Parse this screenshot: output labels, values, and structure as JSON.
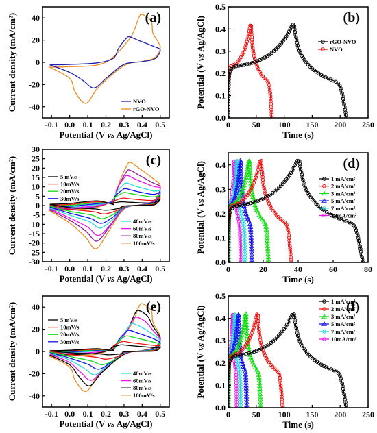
{
  "figure": {
    "panel_labels": [
      "(a)",
      "(b)",
      "(c)",
      "(d)",
      "(e)",
      "(f)"
    ]
  },
  "colors": {
    "NVO": "#1f1fb0",
    "rGO-NVO": "#f08a1e",
    "black": "#000000",
    "red": "#ee1111",
    "green": "#11dd11",
    "blue": "#1111ee",
    "cyan": "#22dddd",
    "magenta": "#ee11ee",
    "purple": "#8a1aa0"
  },
  "chart_data": [
    {
      "panel": "(a)",
      "type": "line",
      "xlabel": "Potential (V vs Ag/AgCl)",
      "ylabel": "Current density (mA/cm²)",
      "xlim": [
        -0.15,
        0.55
      ],
      "ylim": [
        -50,
        50
      ],
      "xticks": [
        -0.1,
        0.0,
        0.1,
        0.2,
        0.3,
        0.4,
        0.5
      ],
      "yticks": [
        -40,
        -20,
        0,
        20,
        40
      ],
      "xtick_labels": [
        "-0.1",
        "0.0",
        "0.1",
        "0.2",
        "0.3",
        "0.4",
        "0.5"
      ],
      "ytick_labels": [
        "-40",
        "-20",
        "0",
        "20",
        "40"
      ],
      "legend_position": "bottom-right",
      "series": [
        {
          "name": "NVO",
          "color": "#1f1fb0",
          "cv": {
            "lower_min": -3.5,
            "lower_max": 6.5,
            "ox_peak": [
              0.33,
              23
            ],
            "red_peak": [
              0.135,
              -23
            ]
          }
        },
        {
          "name": "rGO-NVO",
          "color": "#f08a1e",
          "cv": {
            "lower_min": -5.5,
            "lower_max": 8.5,
            "ox_peak": [
              0.4,
              43
            ],
            "red_peak": [
              0.09,
              -37
            ]
          }
        }
      ]
    },
    {
      "panel": "(b)",
      "type": "line",
      "xlabel": "Time (s)",
      "ylabel": "Potential (V vs Ag/AgCl)",
      "xlim": [
        0,
        250
      ],
      "ylim": [
        0,
        0.5
      ],
      "xticks": [
        0,
        50,
        100,
        150,
        200,
        250
      ],
      "yticks": [
        0.0,
        0.1,
        0.2,
        0.3,
        0.4,
        0.5
      ],
      "xtick_labels": [
        "0",
        "50",
        "100",
        "150",
        "200",
        "250"
      ],
      "ytick_labels": [
        "0.0",
        "0.1",
        "0.2",
        "0.3",
        "0.4",
        "0.5"
      ],
      "legend_position": "right",
      "series": [
        {
          "name": "rGO-NVO",
          "color": "#000000",
          "marker": "circle",
          "gcd": {
            "peak_time": 116,
            "end_time": 211
          }
        },
        {
          "name": "NVO",
          "color": "#ee1111",
          "marker": "circle",
          "gcd": {
            "peak_time": 40,
            "end_time": 78
          }
        }
      ]
    },
    {
      "panel": "(c)",
      "type": "line",
      "xlabel": "Potential (V vs Ag/AgCl)",
      "ylabel": "Current density (mA/cm²)",
      "xlim": [
        -0.15,
        0.55
      ],
      "ylim": [
        -30,
        30
      ],
      "xticks": [
        -0.1,
        0.0,
        0.1,
        0.2,
        0.3,
        0.4,
        0.5
      ],
      "yticks": [
        -30,
        -25,
        -20,
        -15,
        -10,
        -5,
        0,
        5,
        10,
        15,
        20,
        25,
        30
      ],
      "xtick_labels": [
        "-0.1",
        "0.0",
        "0.1",
        "0.2",
        "0.3",
        "0.4",
        "0.5"
      ],
      "ytick_labels": [
        "-30",
        "-25",
        "-20",
        "-15",
        "-10",
        "-5",
        "0",
        "5",
        "10",
        "15",
        "20",
        "25",
        "30"
      ],
      "legend_position": "top-left and bottom-right",
      "series": [
        {
          "name": "5 mV/s",
          "color": "#000000",
          "cv": {
            "lower_min": -0.5,
            "lower_max": 1.0,
            "ox_peak": [
              0.29,
              2
            ],
            "red_peak": [
              0.2,
              -2.5
            ]
          }
        },
        {
          "name": "10mV/s",
          "color": "#ee1111",
          "cv": {
            "lower_min": -1.0,
            "lower_max": 1.8,
            "ox_peak": [
              0.3,
              4
            ],
            "red_peak": [
              0.19,
              -4.5
            ]
          }
        },
        {
          "name": "20mV/s",
          "color": "#11dd11",
          "cv": {
            "lower_min": -1.5,
            "lower_max": 2.5,
            "ox_peak": [
              0.305,
              7
            ],
            "red_peak": [
              0.18,
              -7
            ]
          }
        },
        {
          "name": "30mV/s",
          "color": "#1111ee",
          "cv": {
            "lower_min": -2.0,
            "lower_max": 3.5,
            "ox_peak": [
              0.31,
              9
            ],
            "red_peak": [
              0.175,
              -9.5
            ]
          }
        },
        {
          "name": "40mV/s",
          "color": "#22dddd",
          "cv": {
            "lower_min": -2.5,
            "lower_max": 4.0,
            "ox_peak": [
              0.315,
              12
            ],
            "red_peak": [
              0.17,
              -12
            ]
          }
        },
        {
          "name": "60mV/s",
          "color": "#ee11ee",
          "cv": {
            "lower_min": -3.0,
            "lower_max": 5.0,
            "ox_peak": [
              0.32,
              16
            ],
            "red_peak": [
              0.16,
              -16
            ]
          }
        },
        {
          "name": "80mV/s",
          "color": "#8a1aa0",
          "cv": {
            "lower_min": -3.5,
            "lower_max": 5.5,
            "ox_peak": [
              0.33,
              19
            ],
            "red_peak": [
              0.15,
              -19
            ]
          }
        },
        {
          "name": "100mV/s",
          "color": "#f08a1e",
          "cv": {
            "lower_min": -4.0,
            "lower_max": 6.0,
            "ox_peak": [
              0.335,
              23
            ],
            "red_peak": [
              0.145,
              -23
            ]
          }
        }
      ]
    },
    {
      "panel": "(d)",
      "type": "line",
      "xlabel": "Time (s)",
      "ylabel": "Potential (V vs Ag/AgCl)",
      "xlim": [
        0,
        80
      ],
      "ylim": [
        0,
        0.45
      ],
      "xticks": [
        0,
        20,
        40,
        60,
        80
      ],
      "yticks": [
        0.0,
        0.1,
        0.2,
        0.3,
        0.4
      ],
      "xtick_labels": [
        "0",
        "20",
        "40",
        "60",
        "80"
      ],
      "ytick_labels": [
        "0.0",
        "0.1",
        "0.2",
        "0.3",
        "0.4"
      ],
      "legend_position": "right",
      "series": [
        {
          "name": "1 mA/cm²",
          "color": "#000000",
          "marker": "circle",
          "gcd": {
            "peak_time": 40,
            "end_time": 77
          }
        },
        {
          "name": "2 mA/cm²",
          "color": "#ee1111",
          "marker": "circle",
          "gcd": {
            "peak_time": 18.5,
            "end_time": 36
          }
        },
        {
          "name": "3 mA/cm²",
          "color": "#11dd11",
          "marker": "triangle",
          "gcd": {
            "peak_time": 12,
            "end_time": 23
          }
        },
        {
          "name": "5 mA/cm²",
          "color": "#1111ee",
          "marker": "triangle",
          "gcd": {
            "peak_time": 7,
            "end_time": 13.5
          }
        },
        {
          "name": "7 mA/cm²",
          "color": "#22dddd",
          "marker": "diamond",
          "gcd": {
            "peak_time": 5,
            "end_time": 9.5
          }
        },
        {
          "name": "10mA/cm²",
          "color": "#ee11ee",
          "marker": "circle",
          "gcd": {
            "peak_time": 3.5,
            "end_time": 7
          }
        }
      ]
    },
    {
      "panel": "(e)",
      "type": "line",
      "xlabel": "Potential (V vs Ag/AgCl)",
      "ylabel": "Current density (mA/cm²)",
      "xlim": [
        -0.15,
        0.55
      ],
      "ylim": [
        -50,
        50
      ],
      "xticks": [
        -0.1,
        0.0,
        0.1,
        0.2,
        0.3,
        0.4,
        0.5
      ],
      "yticks": [
        -40,
        -20,
        0,
        20,
        40
      ],
      "xtick_labels": [
        "-0.1",
        "0.0",
        "0.1",
        "0.2",
        "0.3",
        "0.4",
        "0.5"
      ],
      "ytick_labels": [
        "-40",
        "-20",
        "0",
        "20",
        "40"
      ],
      "legend_position": "top-left and bottom-right",
      "series": [
        {
          "name": "5 mV/s",
          "color": "#000000",
          "cv": {
            "lower_min": -0.5,
            "lower_max": 1.0,
            "ox_peak": [
              0.29,
              6
            ],
            "red_peak": [
              0.22,
              -3
            ]
          }
        },
        {
          "name": "10mV/s",
          "color": "#ee1111",
          "cv": {
            "lower_min": -1.0,
            "lower_max": 2.0,
            "ox_peak": [
              0.3,
              9
            ],
            "red_peak": [
              0.2,
              -7
            ]
          }
        },
        {
          "name": "20mV/s",
          "color": "#11dd11",
          "cv": {
            "lower_min": -1.5,
            "lower_max": 3.0,
            "ox_peak": [
              0.32,
              14
            ],
            "red_peak": [
              0.18,
              -12
            ]
          }
        },
        {
          "name": "30mV/s",
          "color": "#1111ee",
          "cv": {
            "lower_min": -2.0,
            "lower_max": 4.0,
            "ox_peak": [
              0.33,
              19
            ],
            "red_peak": [
              0.16,
              -16
            ]
          }
        },
        {
          "name": "40mV/s",
          "color": "#22dddd",
          "cv": {
            "lower_min": -2.5,
            "lower_max": 5.0,
            "ox_peak": [
              0.35,
              25
            ],
            "red_peak": [
              0.14,
              -21
            ]
          }
        },
        {
          "name": "60mV/s",
          "color": "#ee11ee",
          "cv": {
            "lower_min": -3.5,
            "lower_max": 6.0,
            "ox_peak": [
              0.37,
              31
            ],
            "red_peak": [
              0.12,
              -26
            ]
          }
        },
        {
          "name": "80mV/s",
          "color": "#000000",
          "cv": {
            "lower_min": -4.5,
            "lower_max": 7.0,
            "ox_peak": [
              0.38,
              37
            ],
            "red_peak": [
              0.11,
              -31
            ]
          }
        },
        {
          "name": "100mV/s",
          "color": "#f08a1e",
          "cv": {
            "lower_min": -5.5,
            "lower_max": 8.0,
            "ox_peak": [
              0.4,
              43
            ],
            "red_peak": [
              0.09,
              -36
            ]
          }
        }
      ]
    },
    {
      "panel": "(f)",
      "type": "line",
      "xlabel": "Time (s)",
      "ylabel": "Potential (V vs Ag/AgCl)",
      "xlim": [
        0,
        250
      ],
      "ylim": [
        0,
        0.5
      ],
      "xticks": [
        0,
        50,
        100,
        150,
        200,
        250
      ],
      "yticks": [
        0.0,
        0.1,
        0.2,
        0.3,
        0.4,
        0.5
      ],
      "xtick_labels": [
        "0",
        "50",
        "100",
        "150",
        "200",
        "250"
      ],
      "ytick_labels": [
        "0.0",
        "0.1",
        "0.2",
        "0.3",
        "0.4",
        "0.5"
      ],
      "legend_position": "right",
      "series": [
        {
          "name": "1 mA/cm²",
          "color": "#000000",
          "marker": "circle",
          "gcd": {
            "peak_time": 116,
            "end_time": 211
          }
        },
        {
          "name": "2 mA/cm²",
          "color": "#ee1111",
          "marker": "circle",
          "gcd": {
            "peak_time": 52,
            "end_time": 97
          }
        },
        {
          "name": "3 mA/cm²",
          "color": "#11dd11",
          "marker": "triangle",
          "gcd": {
            "peak_time": 31,
            "end_time": 58
          }
        },
        {
          "name": "5 mA/cm²",
          "color": "#1111ee",
          "marker": "triangle",
          "gcd": {
            "peak_time": 18,
            "end_time": 33
          }
        },
        {
          "name": "7 mA/cm²",
          "color": "#22dddd",
          "marker": "diamond",
          "gcd": {
            "peak_time": 12,
            "end_time": 22
          }
        },
        {
          "name": "10mA/cm²",
          "color": "#ee11ee",
          "marker": "circle",
          "gcd": {
            "peak_time": 8,
            "end_time": 15
          }
        }
      ]
    }
  ]
}
